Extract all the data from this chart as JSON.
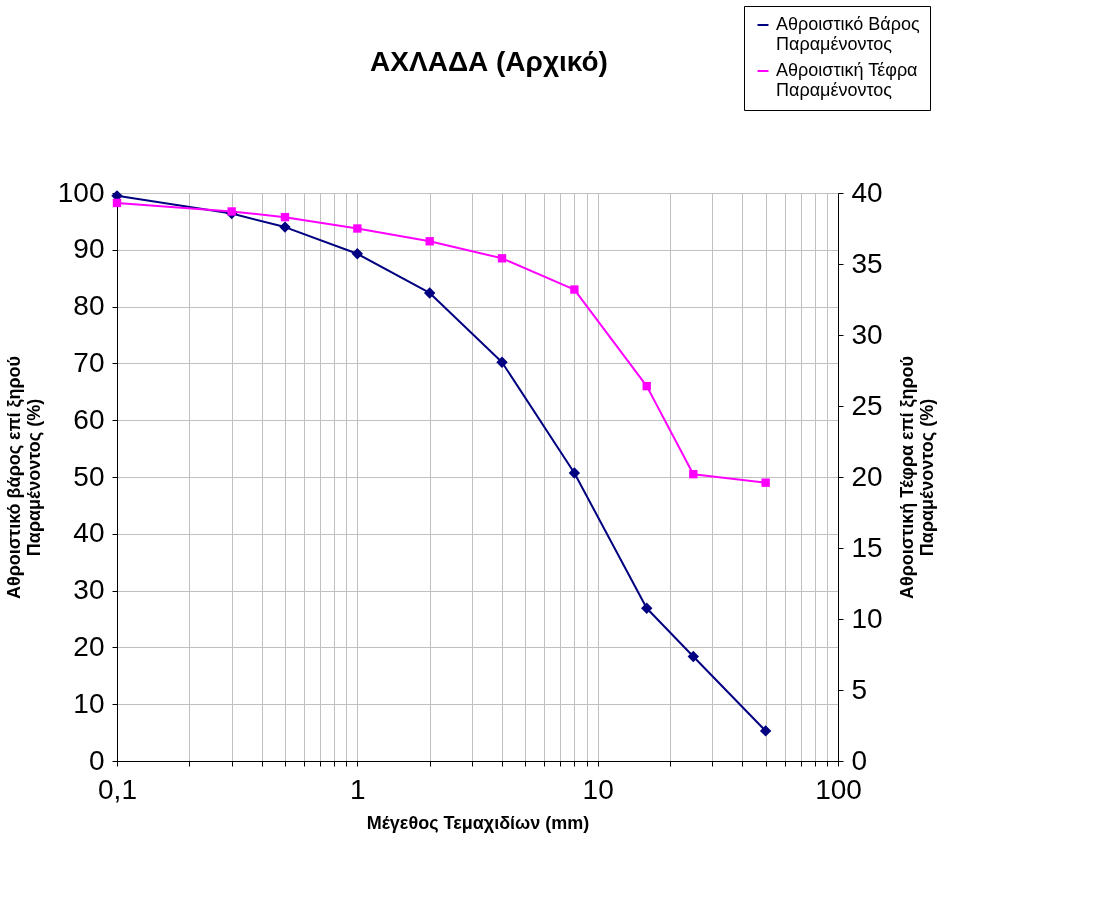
{
  "chart_data": {
    "type": "line",
    "title": "ΑΧΛΑΔΑ (Αρχικό)",
    "xlabel": "Μέγεθος Τεμαχιδίων (mm)",
    "ylabel": "Αθροιστικό βάρος επί ξηρού Παραμένοντος (%)",
    "y2label": "Αθροιστική Τέφρα επί ξηρού Παραμένοντος (%)",
    "x": [
      0.1,
      0.3,
      0.5,
      1,
      2,
      4,
      8,
      16,
      25,
      50
    ],
    "series": [
      {
        "name": "Αθροιστικό Βάρος Παραμένοντος",
        "color": "#000080",
        "marker": "diamond",
        "values": [
          99.5,
          96.4,
          94.0,
          89.3,
          82.4,
          70.2,
          50.7,
          26.9,
          18.4,
          5.3
        ]
      },
      {
        "name": "Αθροιστική Τέφρα Παραμένοντος",
        "color": "#ff00ff",
        "marker": "square",
        "axis": "y2",
        "values": [
          39.3,
          38.7,
          38.3,
          37.5,
          36.6,
          35.4,
          33.2,
          26.4,
          20.2,
          19.6
        ]
      }
    ],
    "log": "x",
    "xlim": [
      0.1,
      100
    ],
    "xticks": [
      {
        "value": 0.1,
        "label": "0,1"
      },
      {
        "value": 0.2,
        "label": null
      },
      {
        "value": 0.3,
        "label": null
      },
      {
        "value": 0.4,
        "label": null
      },
      {
        "value": 0.5,
        "label": null
      },
      {
        "value": 0.6,
        "label": null
      },
      {
        "value": 0.7,
        "label": null
      },
      {
        "value": 0.8,
        "label": null
      },
      {
        "value": 0.9,
        "label": null
      },
      1,
      {
        "value": 2,
        "label": null
      },
      {
        "value": 3,
        "label": null
      },
      {
        "value": 4,
        "label": null
      },
      {
        "value": 5,
        "label": null
      },
      {
        "value": 6,
        "label": null
      },
      {
        "value": 7,
        "label": null
      },
      {
        "value": 8,
        "label": null
      },
      {
        "value": 9,
        "label": null
      },
      10,
      {
        "value": 20,
        "label": null
      },
      {
        "value": 30,
        "label": null
      },
      {
        "value": 40,
        "label": null
      },
      {
        "value": 50,
        "label": null
      },
      {
        "value": 60,
        "label": null
      },
      {
        "value": 70,
        "label": null
      },
      {
        "value": 80,
        "label": null
      },
      {
        "value": 90,
        "label": null
      },
      100
    ],
    "ylim": [
      0,
      100
    ],
    "yticks": [
      0,
      10,
      20,
      30,
      40,
      50,
      60,
      70,
      80,
      90,
      100
    ],
    "y2lim": [
      0,
      40
    ],
    "y2ticks": [
      0,
      5,
      10,
      15,
      20,
      25,
      30,
      35,
      40
    ],
    "grid": true,
    "legend": "top right",
    "line_style": "solid"
  }
}
